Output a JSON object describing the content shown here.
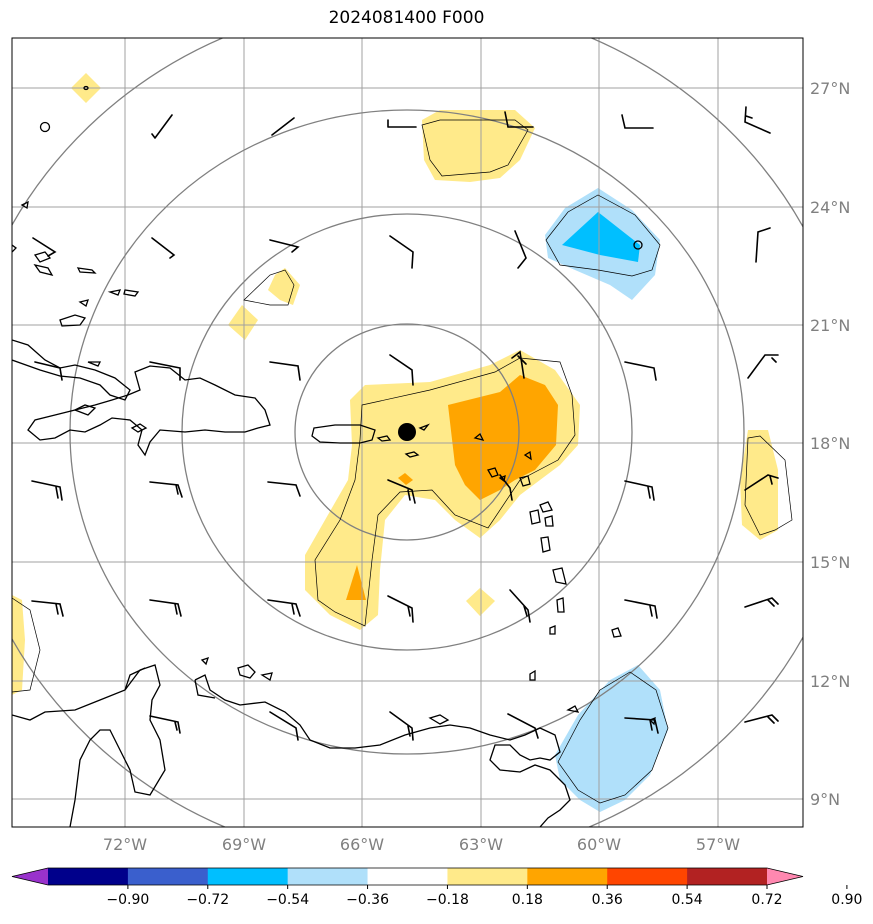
{
  "title": "2024081400 F000",
  "map": {
    "lat_labels": [
      "27°N",
      "24°N",
      "21°N",
      "18°N",
      "15°N",
      "12°N",
      "9°N"
    ],
    "lon_labels": [
      "72°W",
      "69°W",
      "66°W",
      "63°W",
      "60°W",
      "57°W"
    ],
    "center_marker": "storm-center-dot",
    "colors": {
      "gridline": "#a0a0a0",
      "range_ring": "#808080",
      "coastline": "#000000"
    }
  },
  "colorbar": {
    "levels": [
      "−0.90",
      "−0.72",
      "−0.54",
      "−0.36",
      "−0.18",
      "0.18",
      "0.36",
      "0.54",
      "0.72",
      "0.90"
    ],
    "colors": [
      "#9932cc",
      "#00008b",
      "#3a5fcd",
      "#00bfff",
      "#b0e0fa",
      "#ffffff",
      "#ffea8a",
      "#ffa500",
      "#ff4500",
      "#b22222",
      "#ff88b0"
    ]
  }
}
